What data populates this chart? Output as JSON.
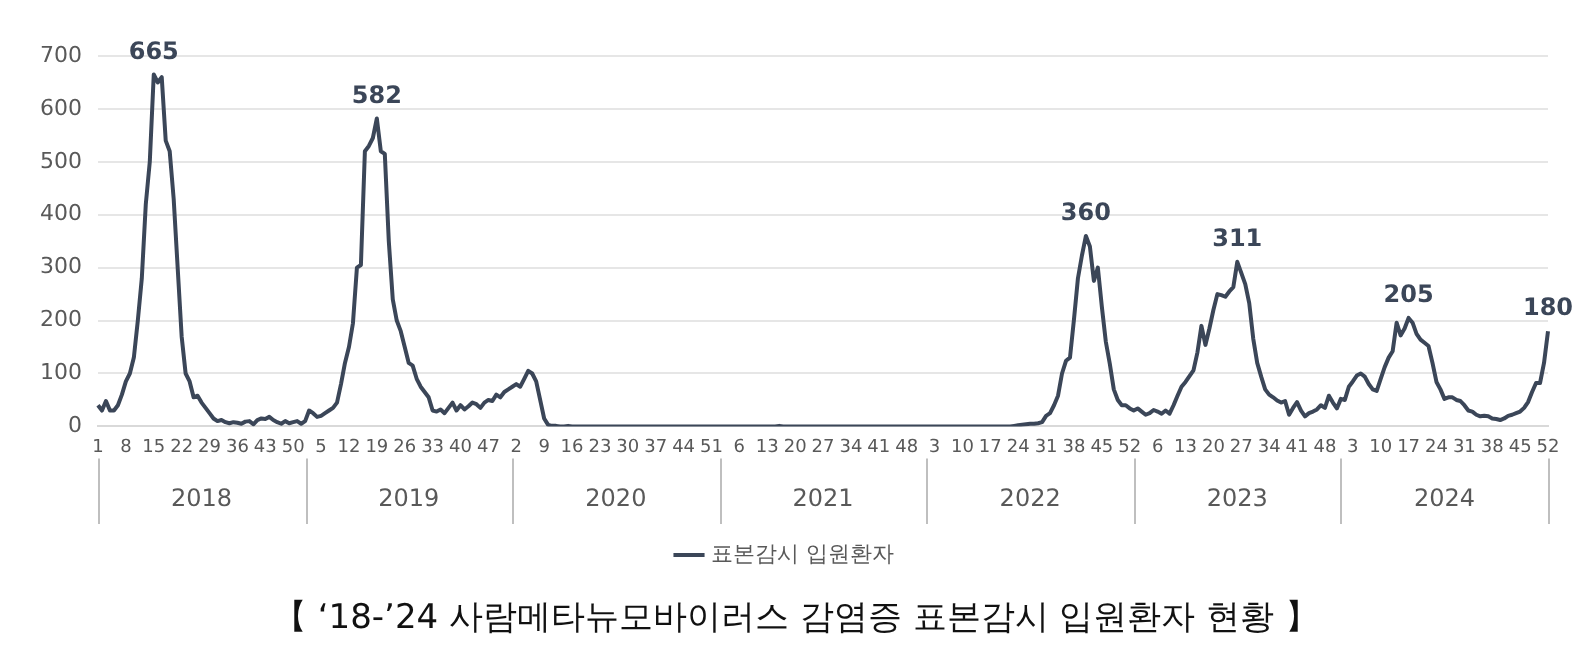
{
  "chart_data": {
    "type": "line",
    "title": "【 ‘18-’24 사람메타뉴모바이러스 감염증 표본감시 입원환자 현황 】",
    "categories": [
      "1",
      null,
      null,
      null,
      null,
      null,
      null,
      "8",
      null,
      null,
      null,
      null,
      null,
      null,
      "15",
      null,
      null,
      null,
      null,
      null,
      null,
      "22",
      null,
      null,
      null,
      null,
      null,
      null,
      "29",
      null,
      null,
      null,
      null,
      null,
      null,
      "36",
      null,
      null,
      null,
      null,
      null,
      null,
      "43",
      null,
      null,
      null,
      null,
      null,
      null,
      "50",
      null,
      null,
      null,
      null,
      null,
      null,
      "5",
      null,
      null,
      null,
      null,
      null,
      null,
      "12",
      null,
      null,
      null,
      null,
      null,
      null,
      "19",
      null,
      null,
      null,
      null,
      null,
      null,
      "26",
      null,
      null,
      null,
      null,
      null,
      null,
      "33",
      null,
      null,
      null,
      null,
      null,
      null,
      "40",
      null,
      null,
      null,
      null,
      null,
      null,
      "47",
      null,
      null,
      null,
      null,
      null,
      null,
      "2",
      null,
      null,
      null,
      null,
      null,
      null,
      "9",
      null,
      null,
      null,
      null,
      null,
      null,
      "16",
      null,
      null,
      null,
      null,
      null,
      null,
      "23",
      null,
      null,
      null,
      null,
      null,
      null,
      "30",
      null,
      null,
      null,
      null,
      null,
      null,
      "37",
      null,
      null,
      null,
      null,
      null,
      null,
      "44",
      null,
      null,
      null,
      null,
      null,
      null,
      "51",
      null,
      null,
      null,
      null,
      null,
      null,
      "6",
      null,
      null,
      null,
      null,
      null,
      null,
      "13",
      null,
      null,
      null,
      null,
      null,
      null,
      "20",
      null,
      null,
      null,
      null,
      null,
      null,
      "27",
      null,
      null,
      null,
      null,
      null,
      null,
      "34",
      null,
      null,
      null,
      null,
      null,
      null,
      "41",
      null,
      null,
      null,
      null,
      null,
      null,
      "48",
      null,
      null,
      null,
      null,
      null,
      null,
      "3",
      null,
      null,
      null,
      null,
      null,
      null,
      "10",
      null,
      null,
      null,
      null,
      null,
      null,
      "17",
      null,
      null,
      null,
      null,
      null,
      null,
      "24",
      null,
      null,
      null,
      null,
      null,
      null,
      "31",
      null,
      null,
      null,
      null,
      null,
      null,
      "38",
      null,
      null,
      null,
      null,
      null,
      null,
      "45",
      null,
      null,
      null,
      null,
      null,
      null,
      "52",
      null,
      null,
      null,
      null,
      null,
      null,
      "6",
      null,
      null,
      null,
      null,
      null,
      null,
      "13",
      null,
      null,
      null,
      null,
      null,
      null,
      "20",
      null,
      null,
      null,
      null,
      null,
      null,
      "27",
      null,
      null,
      null,
      null,
      null,
      null,
      "34",
      null,
      null,
      null,
      null,
      null,
      null,
      "41",
      null,
      null,
      null,
      null,
      null,
      null,
      "48",
      null,
      null,
      null,
      null,
      null,
      null,
      "3",
      null,
      null,
      null,
      null,
      null,
      null,
      "10",
      null,
      null,
      null,
      null,
      null,
      null,
      "17",
      null,
      null,
      null,
      null,
      null,
      null,
      "24",
      null,
      null,
      null,
      null,
      null,
      null,
      "31",
      null,
      null,
      null,
      null,
      null,
      null,
      "38",
      null,
      null,
      null,
      null,
      null,
      null,
      "45",
      null,
      null,
      null,
      null,
      null,
      null,
      "52"
    ],
    "series": [
      {
        "name": "표본감시 입원환자",
        "color": "#3b4658",
        "values": [
          40,
          30,
          48,
          30,
          30,
          40,
          60,
          85,
          100,
          130,
          200,
          280,
          420,
          500,
          665,
          650,
          660,
          540,
          520,
          430,
          300,
          170,
          100,
          85,
          55,
          58,
          45,
          35,
          25,
          15,
          10,
          12,
          8,
          6,
          8,
          7,
          5,
          9,
          10,
          4,
          12,
          15,
          14,
          18,
          12,
          8,
          5,
          10,
          6,
          8,
          10,
          5,
          10,
          30,
          25,
          18,
          20,
          25,
          30,
          35,
          45,
          80,
          120,
          150,
          195,
          300,
          305,
          520,
          530,
          545,
          582,
          520,
          515,
          350,
          240,
          200,
          180,
          150,
          120,
          115,
          90,
          75,
          65,
          55,
          30,
          28,
          32,
          25,
          35,
          45,
          30,
          40,
          32,
          38,
          45,
          42,
          35,
          45,
          50,
          48,
          60,
          55,
          65,
          70,
          75,
          80,
          75,
          90,
          105,
          100,
          85,
          50,
          15,
          3,
          1,
          1,
          0,
          0,
          1,
          0,
          0,
          0,
          0,
          0,
          0,
          0,
          0,
          0,
          0,
          0,
          0,
          0,
          0,
          0,
          0,
          0,
          0,
          0,
          0,
          0,
          0,
          0,
          0,
          0,
          0,
          0,
          0,
          0,
          0,
          0,
          0,
          0,
          0,
          0,
          0,
          0,
          0,
          0,
          0,
          0,
          0,
          0,
          0,
          0,
          0,
          0,
          0,
          0,
          0,
          0,
          0,
          1,
          0,
          0,
          0,
          0,
          0,
          0,
          0,
          0,
          0,
          0,
          0,
          0,
          0,
          0,
          0,
          0,
          0,
          0,
          0,
          0,
          0,
          0,
          0,
          0,
          0,
          0,
          0,
          0,
          0,
          0,
          0,
          0,
          0,
          0,
          0,
          0,
          0,
          0,
          0,
          0,
          0,
          0,
          0,
          0,
          0,
          0,
          0,
          0,
          0,
          0,
          0,
          0,
          0,
          0,
          0,
          0,
          0,
          0,
          1,
          2,
          3,
          4,
          5,
          5,
          6,
          8,
          20,
          25,
          40,
          58,
          100,
          124,
          130,
          202,
          280,
          323,
          360,
          340,
          275,
          300,
          226,
          160,
          118,
          70,
          50,
          40,
          40,
          34,
          30,
          34,
          28,
          22,
          25,
          31,
          28,
          24,
          30,
          24,
          40,
          58,
          75,
          84,
          95,
          106,
          140,
          190,
          154,
          185,
          220,
          250,
          248,
          245,
          255,
          263,
          311,
          290,
          269,
          233,
          166,
          120,
          94,
          70,
          60,
          55,
          49,
          45,
          48,
          22,
          35,
          46,
          30,
          19,
          25,
          28,
          32,
          40,
          35,
          58,
          45,
          34,
          52,
          50,
          75,
          85,
          96,
          100,
          94,
          80,
          70,
          67,
          90,
          112,
          130,
          142,
          196,
          172,
          185,
          205,
          196,
          175,
          164,
          158,
          152,
          120,
          84,
          70,
          52,
          55,
          55,
          50,
          48,
          40,
          30,
          28,
          22,
          19,
          20,
          19,
          15,
          14,
          12,
          15,
          20,
          22,
          25,
          28,
          35,
          46,
          65,
          82,
          82,
          120,
          180
        ],
        "value_labels": [
          null,
          null,
          null,
          null,
          null,
          null,
          null,
          null,
          null,
          null,
          null,
          null,
          null,
          null,
          "665",
          null,
          null,
          null,
          null,
          null,
          null,
          null,
          null,
          null,
          null,
          null,
          null,
          null,
          null,
          null,
          null,
          null,
          null,
          null,
          null,
          null,
          null,
          null,
          null,
          null,
          null,
          null,
          null,
          null,
          null,
          null,
          null,
          null,
          null,
          null,
          null,
          null,
          null,
          null,
          null,
          null,
          null,
          null,
          null,
          null,
          null,
          null,
          null,
          null,
          null,
          null,
          null,
          null,
          null,
          null,
          "582",
          null,
          null,
          null,
          null,
          null,
          null,
          null,
          null,
          null,
          null,
          null,
          null,
          null,
          null,
          null,
          null,
          null,
          null,
          null,
          null,
          null,
          null,
          null,
          null,
          null,
          null,
          null,
          null,
          null,
          null,
          null,
          null,
          null,
          null,
          null,
          null,
          null,
          null,
          null,
          null,
          null,
          null,
          null,
          null,
          null,
          null,
          null,
          null,
          null,
          null,
          null,
          null,
          null,
          null,
          null,
          null,
          null,
          null,
          null,
          null,
          null,
          null,
          null,
          null,
          null,
          null,
          null,
          null,
          null,
          null,
          null,
          null,
          null,
          null,
          null,
          null,
          null,
          null,
          null,
          null,
          null,
          null,
          null,
          null,
          null,
          null,
          null,
          null,
          null,
          null,
          null,
          null,
          null,
          null,
          null,
          null,
          null,
          null,
          null,
          null,
          null,
          null,
          null,
          null,
          null,
          null,
          null,
          null,
          null,
          null,
          null,
          null,
          null,
          null,
          null,
          null,
          null,
          null,
          null,
          null,
          null,
          null,
          null,
          null,
          null,
          null,
          null,
          null,
          null,
          null,
          null,
          null,
          null,
          null,
          null,
          null,
          null,
          null,
          null,
          null,
          null,
          null,
          null,
          null,
          null,
          null,
          null,
          null,
          null,
          null,
          null,
          null,
          null,
          null,
          null,
          null,
          null,
          null,
          null,
          null,
          null,
          null,
          null,
          null,
          null,
          null,
          null,
          null,
          null,
          null,
          null,
          null,
          null,
          null,
          null,
          null,
          null,
          "360",
          null,
          null,
          null,
          null,
          null,
          null,
          null,
          null,
          null,
          null,
          null,
          null,
          null,
          null,
          null,
          null,
          null,
          null,
          null,
          null,
          null,
          null,
          null,
          null,
          null,
          null,
          null,
          null,
          null,
          null,
          null,
          null,
          null,
          null,
          null,
          null,
          null,
          "311",
          null,
          null,
          null,
          null,
          null,
          null,
          null,
          null,
          null,
          null,
          null,
          null,
          null,
          null,
          null,
          null,
          null,
          null,
          null,
          null,
          null,
          null,
          null,
          null,
          null,
          null,
          null,
          null,
          null,
          null,
          null,
          null,
          null,
          null,
          null,
          null,
          null,
          null,
          null,
          null,
          null,
          null,
          "205",
          null,
          null,
          null,
          null,
          null,
          null,
          null,
          null,
          null,
          null,
          null,
          null,
          null,
          null,
          null,
          null,
          null,
          null,
          null,
          null,
          null,
          null,
          null,
          null,
          null,
          null,
          null,
          null,
          null,
          null,
          null,
          null,
          null,
          null,
          "180"
        ]
      }
    ],
    "annotations": [
      "2018",
      "2019",
      "2020",
      "2021",
      "2022",
      "2023",
      "2024"
    ],
    "ylim": [
      0,
      700
    ],
    "yticks": [
      0,
      100,
      200,
      300,
      400,
      500,
      600,
      700
    ],
    "grid": "y",
    "legend": "bottom"
  }
}
